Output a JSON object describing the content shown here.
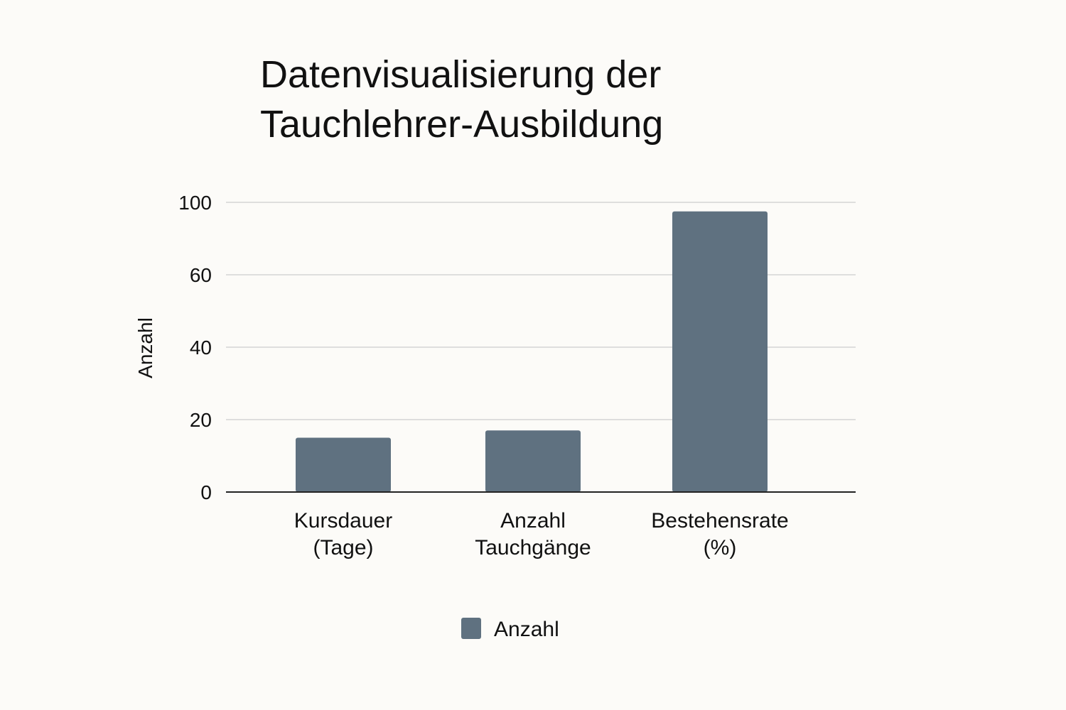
{
  "chart_data": {
    "type": "bar",
    "title": [
      "Datenvisualisierung der",
      "Tauchlehrer-Ausbildung"
    ],
    "ylabel": "Anzahl",
    "xlabel": "",
    "categories": [
      [
        "Kursdauer",
        "(Tage)"
      ],
      [
        "Anzahl",
        "Tauchgänge"
      ],
      [
        "Bestehensrate",
        "(%)"
      ]
    ],
    "series": [
      {
        "name": "Anzahl",
        "values": [
          15,
          17,
          95
        ],
        "color": "#5f7180"
      }
    ],
    "yticks": [
      "0",
      "20",
      "40",
      "60",
      "100"
    ],
    "legend": "bottom-center",
    "grid": true
  }
}
